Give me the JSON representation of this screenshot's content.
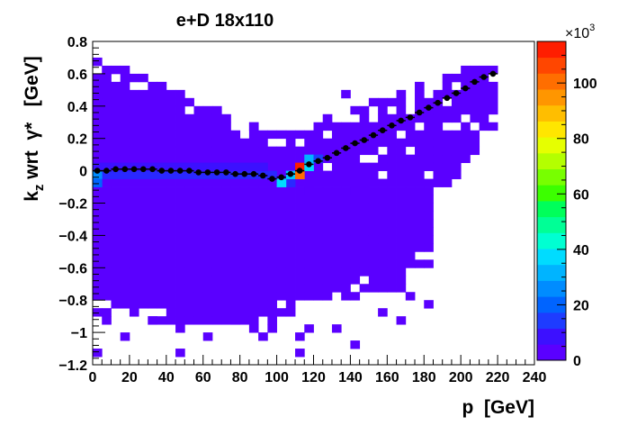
{
  "chart_data": {
    "type": "heatmap",
    "title": "e+D 18x110",
    "xlabel": "p  [GeV]",
    "ylabel": "k_z wrt γ*   [GeV]",
    "ylabel_main": "k",
    "ylabel_sub": "z",
    "ylabel_rest": " wrt  γ*   [GeV]",
    "xlim": [
      0,
      240
    ],
    "ylim": [
      -1.2,
      0.8
    ],
    "x_ticks": [
      0,
      20,
      40,
      60,
      80,
      100,
      120,
      140,
      160,
      180,
      200,
      220,
      240
    ],
    "y_ticks": [
      -1.2,
      -1,
      -0.8,
      -0.6,
      -0.4,
      -0.2,
      0,
      0.2,
      0.4,
      0.6,
      0.8
    ],
    "y_tick_labels": [
      "−1.2",
      "−1",
      "−0.8",
      "−0.6",
      "−0.4",
      "−0.2",
      "0",
      "0.2",
      "0.4",
      "0.6",
      "0.8"
    ],
    "colorbar": {
      "zlim": [
        0,
        115
      ],
      "ticks": [
        0,
        20,
        40,
        60,
        80,
        100
      ],
      "multiplier": "×10",
      "multiplier_exp": "3",
      "palette": [
        "#5a00ff",
        "#3c10ff",
        "#1e3cff",
        "#0064ff",
        "#008cff",
        "#00b4ff",
        "#00dcff",
        "#00ffd2",
        "#00ff96",
        "#00ff5a",
        "#3cff00",
        "#78ff00",
        "#b4ff00",
        "#e6ff00",
        "#ffe600",
        "#ffbe00",
        "#ff9600",
        "#ff6e00",
        "#ff4600",
        "#ff1e00"
      ]
    },
    "profile": {
      "x": [
        2.5,
        7.5,
        12.5,
        17.5,
        22.5,
        27.5,
        32.5,
        37.5,
        42.5,
        47.5,
        52.5,
        57.5,
        62.5,
        67.5,
        72.5,
        77.5,
        82.5,
        87.5,
        92.5,
        97.5,
        102.5,
        107.5,
        112.5,
        117.5,
        122.5,
        127.5,
        132.5,
        137.5,
        142.5,
        147.5,
        152.5,
        157.5,
        162.5,
        167.5,
        172.5,
        177.5,
        182.5,
        187.5,
        192.5,
        197.5,
        202.5,
        207.5,
        212.5,
        217.5
      ],
      "y": [
        0.0,
        0.0,
        0.01,
        0.01,
        0.01,
        0.01,
        0.01,
        0.0,
        0.0,
        0.0,
        0.0,
        -0.01,
        -0.01,
        -0.01,
        -0.01,
        -0.02,
        -0.02,
        -0.02,
        -0.03,
        -0.05,
        -0.04,
        -0.02,
        0.0,
        0.04,
        0.06,
        0.08,
        0.11,
        0.14,
        0.17,
        0.19,
        0.22,
        0.25,
        0.28,
        0.31,
        0.33,
        0.36,
        0.39,
        0.42,
        0.45,
        0.48,
        0.51,
        0.55,
        0.58,
        0.6
      ]
    }
  }
}
